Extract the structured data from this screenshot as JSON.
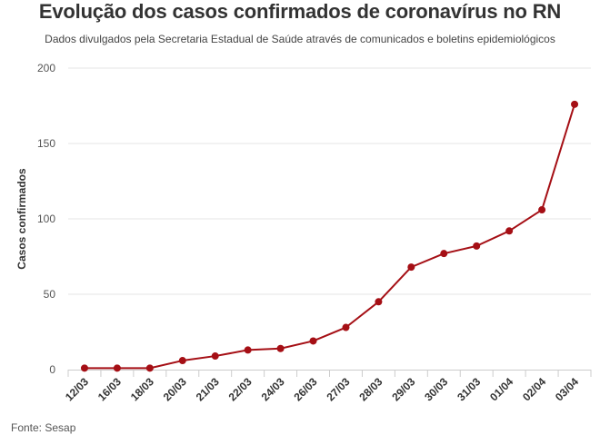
{
  "header": {
    "title": "Evolução dos casos confirmados de coronavírus no RN",
    "subtitle": "Dados divulgados pela Secretaria Estadual de Saúde através de comunicados e boletins epidemiológicos"
  },
  "footer": {
    "source": "Fonte: Sesap"
  },
  "chart_data": {
    "type": "line",
    "title": "Evolução dos casos confirmados de coronavírus no RN",
    "subtitle": "Dados divulgados pela Secretaria Estadual de Saúde através de comunicados e boletins epidemiológicos",
    "xlabel": "",
    "ylabel": "Casos confirmados",
    "categories": [
      "12/03",
      "16/03",
      "18/03",
      "20/03",
      "21/03",
      "22/03",
      "24/03",
      "26/03",
      "27/03",
      "28/03",
      "29/03",
      "30/03",
      "31/03",
      "01/04",
      "02/04",
      "03/04"
    ],
    "series": [
      {
        "values": [
          1,
          1,
          1,
          6,
          9,
          13,
          14,
          19,
          28,
          45,
          68,
          77,
          82,
          92,
          106,
          176
        ]
      }
    ],
    "ylim": [
      0,
      200
    ],
    "yticks": [
      0,
      50,
      100,
      150,
      200
    ],
    "grid": true,
    "legend": "none",
    "colors": {
      "line": "#a50f15",
      "marker": "#a50f15",
      "grid": "#e6e6e6",
      "axis": "#cccccc"
    }
  }
}
